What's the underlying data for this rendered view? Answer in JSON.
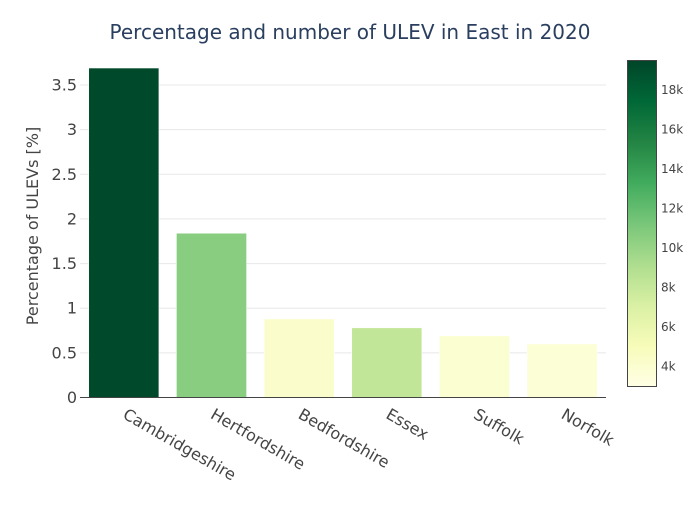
{
  "chart_data": {
    "type": "bar",
    "title": "Percentage and number of ULEV in East in 2020",
    "xlabel": "",
    "ylabel": "Percentage of ULEVs [%]",
    "categories": [
      "Cambridgeshire",
      "Hertfordshire",
      "Bedfordshire",
      "Essex",
      "Suffolk",
      "Norfolk"
    ],
    "values": [
      3.69,
      1.84,
      0.88,
      0.78,
      0.69,
      0.6
    ],
    "color_values": [
      19200,
      10600,
      4200,
      8200,
      4000,
      3700
    ],
    "ylim": [
      0,
      3.78
    ],
    "yticks": [
      0,
      0.5,
      1,
      1.5,
      2,
      2.5,
      3,
      3.5
    ],
    "ytick_labels": [
      "0",
      "0.5",
      "1",
      "1.5",
      "2",
      "2.5",
      "3",
      "3.5"
    ],
    "colorbar": {
      "colorscale": "YlGn",
      "range": [
        3000,
        19500
      ],
      "ticks": [
        4000,
        6000,
        8000,
        10000,
        12000,
        14000,
        16000,
        18000
      ],
      "tick_labels": [
        "4k",
        "6k",
        "8k",
        "10k",
        "12k",
        "14k",
        "16k",
        "18k"
      ]
    },
    "grid": true,
    "legend": "none"
  }
}
